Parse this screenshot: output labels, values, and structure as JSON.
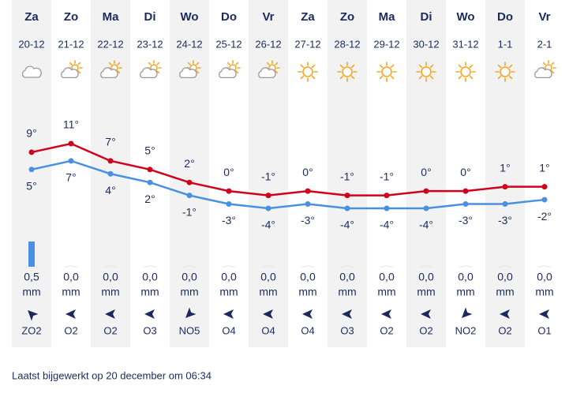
{
  "chart_data": {
    "type": "line",
    "categories": [
      "Za",
      "Zo",
      "Ma",
      "Di",
      "Wo",
      "Do",
      "Vr",
      "Za",
      "Zo",
      "Ma",
      "Di",
      "Wo",
      "Do",
      "Vr"
    ],
    "dates": [
      "20-12",
      "21-12",
      "22-12",
      "23-12",
      "24-12",
      "25-12",
      "26-12",
      "27-12",
      "28-12",
      "29-12",
      "30-12",
      "31-12",
      "1-1",
      "2-1"
    ],
    "weather": [
      "cloud",
      "partly-cloudy",
      "partly-cloudy",
      "partly-cloudy",
      "partly-cloudy",
      "partly-cloudy",
      "partly-cloudy",
      "sun",
      "sun",
      "sun",
      "sun",
      "sun",
      "sun",
      "partly-cloudy"
    ],
    "series": [
      {
        "color": "#d0021b",
        "values": [
          9,
          11,
          7,
          5,
          2,
          0,
          -1,
          0,
          -1,
          -1,
          0,
          0,
          1,
          1
        ],
        "value_labels": [
          "9°",
          "11°",
          "7°",
          "5°",
          "2°",
          "0°",
          "-1°",
          "0°",
          "-1°",
          "-1°",
          "0°",
          "0°",
          "1°",
          "1°"
        ]
      },
      {
        "color": "#4a90e2",
        "values": [
          5,
          7,
          4,
          2,
          -1,
          -3,
          -4,
          -3,
          -4,
          -4,
          -4,
          -3,
          -3,
          -2
        ],
        "value_labels": [
          "5°",
          "7°",
          "4°",
          "2°",
          "-1°",
          "-3°",
          "-4°",
          "-3°",
          "-4°",
          "-4°",
          "-4°",
          "-3°",
          "-3°",
          "-2°"
        ]
      }
    ],
    "precipitation": {
      "color": "#4a90e2",
      "values": [
        0.5,
        0,
        0,
        0,
        0,
        0,
        0,
        0,
        0,
        0,
        0,
        0,
        0,
        0
      ],
      "value_labels": [
        "0,5",
        "0,0",
        "0,0",
        "0,0",
        "0,0",
        "0,0",
        "0,0",
        "0,0",
        "0,0",
        "0,0",
        "0,0",
        "0,0",
        "0,0",
        "0,0"
      ],
      "unit": "mm"
    },
    "wind": [
      "ZO2",
      "O2",
      "O2",
      "O3",
      "NO5",
      "O4",
      "O4",
      "O4",
      "O3",
      "O2",
      "O2",
      "NO2",
      "O2",
      "O1"
    ]
  },
  "footer": "Laatst bijgewerkt op 20 december om 06:34"
}
